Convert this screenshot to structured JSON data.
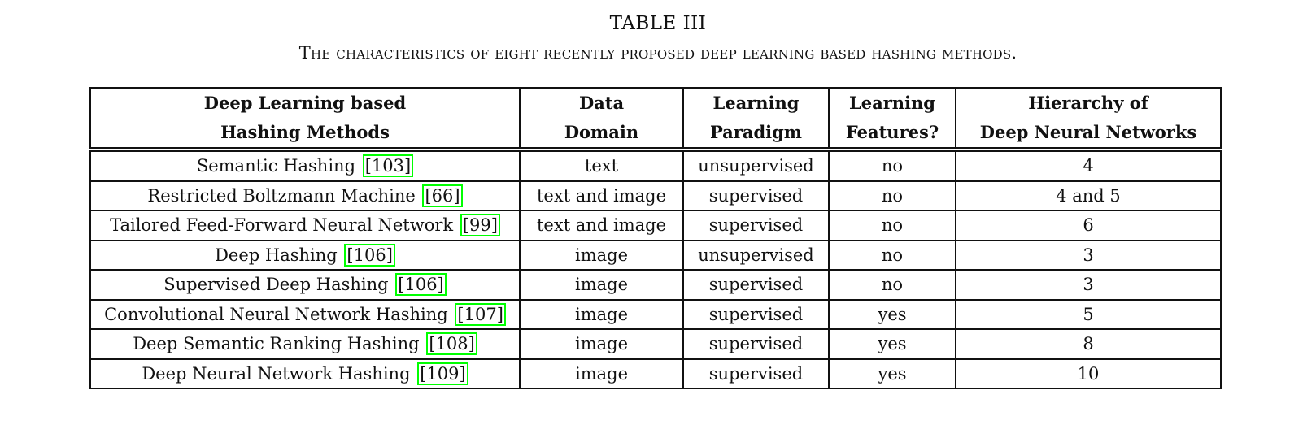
{
  "caption": {
    "title": "TABLE III",
    "subtitle": "The characteristics of eight recently proposed deep learning based hashing methods."
  },
  "table": {
    "headers": [
      {
        "line1": "Deep Learning based",
        "line2": "Hashing Methods"
      },
      {
        "line1": "Data",
        "line2": "Domain"
      },
      {
        "line1": "Learning",
        "line2": "Paradigm"
      },
      {
        "line1": "Learning",
        "line2": "Features?"
      },
      {
        "line1": "Hierarchy of",
        "line2": "Deep Neural Networks"
      }
    ],
    "rows": [
      {
        "method": "Semantic Hashing",
        "ref": "[103]",
        "domain": "text",
        "paradigm": "unsupervised",
        "features": "no",
        "hierarchy": "4"
      },
      {
        "method": "Restricted Boltzmann Machine",
        "ref": "[66]",
        "domain": "text and image",
        "paradigm": "supervised",
        "features": "no",
        "hierarchy": "4 and 5"
      },
      {
        "method": "Tailored Feed-Forward Neural Network",
        "ref": "[99]",
        "domain": "text and image",
        "paradigm": "supervised",
        "features": "no",
        "hierarchy": "6"
      },
      {
        "method": "Deep Hashing",
        "ref": "[106]",
        "domain": "image",
        "paradigm": "unsupervised",
        "features": "no",
        "hierarchy": "3"
      },
      {
        "method": "Supervised Deep Hashing",
        "ref": "[106]",
        "domain": "image",
        "paradigm": "supervised",
        "features": "no",
        "hierarchy": "3"
      },
      {
        "method": "Convolutional Neural Network Hashing",
        "ref": "[107]",
        "domain": "image",
        "paradigm": "supervised",
        "features": "yes",
        "hierarchy": "5"
      },
      {
        "method": "Deep Semantic Ranking Hashing",
        "ref": "[108]",
        "domain": "image",
        "paradigm": "supervised",
        "features": "yes",
        "hierarchy": "8"
      },
      {
        "method": "Deep Neural Network Hashing",
        "ref": "[109]",
        "domain": "image",
        "paradigm": "supervised",
        "features": "yes",
        "hierarchy": "10"
      }
    ]
  },
  "colors": {
    "citation_box": "#00ff00",
    "text": "#111111"
  }
}
